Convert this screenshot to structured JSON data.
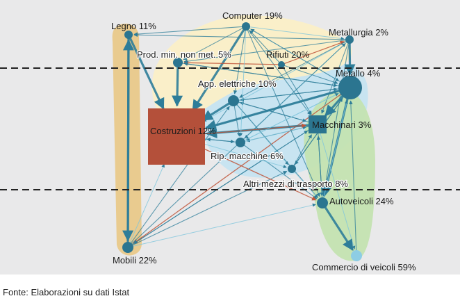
{
  "source": "Fonte: Elaborazioni su dati Istat",
  "colors": {
    "panel": "#e9e9ea",
    "edge": "#2e7d99",
    "edge_light": "#7fc6dc",
    "edge_red": "#c0553a",
    "node": "#2b7590",
    "node_costruzioni": "#b4503a",
    "node_commercio": "#8dcde4",
    "group_orange": "#e9c98a",
    "group_yellow": "#fbefc7",
    "group_blue": "#c6e4f1",
    "group_green": "#c4e3b1",
    "divider": "#222222"
  },
  "nodes": [
    {
      "id": "legno",
      "label": "Legno 11%"
    },
    {
      "id": "computer",
      "label": "Computer 19%"
    },
    {
      "id": "metallurgia",
      "label": "Metallurgia 2%"
    },
    {
      "id": "prodmin",
      "label": "Prod. min. non met. 5%"
    },
    {
      "id": "rifiuti",
      "label": "Rifiuti 20%"
    },
    {
      "id": "metallo",
      "label": "Metallo 4%"
    },
    {
      "id": "appelettriche",
      "label": "App. elettriche 10%"
    },
    {
      "id": "costruzioni",
      "label": "Costruzioni 12%"
    },
    {
      "id": "macchinari",
      "label": "Macchinari 3%"
    },
    {
      "id": "ripmacchine",
      "label": "Rip. macchine 6%"
    },
    {
      "id": "altrimezzi",
      "label": "Altri mezzi di trasporto 8%"
    },
    {
      "id": "autoveicoli",
      "label": "Autoveicoli 24%"
    },
    {
      "id": "mobili",
      "label": "Mobili 22%"
    },
    {
      "id": "commercio",
      "label": "Commercio di veicoli 59%"
    }
  ],
  "edges": [
    [
      "mobili",
      "legno"
    ],
    [
      "legno",
      "costruzioni"
    ],
    [
      "prodmin",
      "costruzioni"
    ],
    [
      "computer",
      "costruzioni"
    ],
    [
      "computer",
      "legno"
    ],
    [
      "computer",
      "prodmin"
    ],
    [
      "computer",
      "metallurgia"
    ],
    [
      "computer",
      "appelettriche"
    ],
    [
      "computer",
      "macchinari"
    ],
    [
      "computer",
      "metallo"
    ],
    [
      "rifiuti",
      "computer"
    ],
    [
      "rifiuti",
      "prodmin"
    ],
    [
      "rifiuti",
      "metallurgia"
    ],
    [
      "metallurgia",
      "legno"
    ],
    [
      "metallurgia",
      "prodmin"
    ],
    [
      "metallurgia",
      "costruzioni"
    ],
    [
      "metallurgia",
      "appelettriche"
    ],
    [
      "metallurgia",
      "macchinari"
    ],
    [
      "metallurgia",
      "ripmacchine"
    ],
    [
      "metallurgia",
      "autoveicoli"
    ],
    [
      "metallurgia",
      "metallo"
    ],
    [
      "metallo",
      "costruzioni"
    ],
    [
      "metallo",
      "appelettriche"
    ],
    [
      "metallo",
      "macchinari"
    ],
    [
      "metallo",
      "ripmacchine"
    ],
    [
      "metallo",
      "altrimezzi"
    ],
    [
      "metallo",
      "autoveicoli"
    ],
    [
      "metallo",
      "mobili"
    ],
    [
      "metallo",
      "prodmin"
    ],
    [
      "metallo",
      "computer"
    ],
    [
      "appelettriche",
      "costruzioni"
    ],
    [
      "appelettriche",
      "macchinari"
    ],
    [
      "appelettriche",
      "ripmacchine"
    ],
    [
      "appelettriche",
      "altrimezzi"
    ],
    [
      "appelettriche",
      "autoveicoli"
    ],
    [
      "appelettriche",
      "metallo"
    ],
    [
      "macchinari",
      "costruzioni"
    ],
    [
      "macchinari",
      "ripmacchine"
    ],
    [
      "macchinari",
      "autoveicoli"
    ],
    [
      "macchinari",
      "commercio"
    ],
    [
      "macchinari",
      "mobili"
    ],
    [
      "macchinari",
      "appelettriche"
    ],
    [
      "ripmacchine",
      "macchinari"
    ],
    [
      "ripmacchine",
      "autoveicoli"
    ],
    [
      "ripmacchine",
      "costruzioni"
    ],
    [
      "altrimezzi",
      "autoveicoli"
    ],
    [
      "altrimezzi",
      "macchinari"
    ],
    [
      "autoveicoli",
      "commercio"
    ],
    [
      "autoveicoli",
      "metallo"
    ],
    [
      "autoveicoli",
      "macchinari"
    ],
    [
      "commercio",
      "metallo"
    ],
    [
      "mobili",
      "costruzioni"
    ],
    [
      "mobili",
      "appelettriche"
    ],
    [
      "mobili",
      "macchinari"
    ],
    [
      "mobili",
      "autoveicoli"
    ],
    [
      "mobili",
      "metallurgia"
    ],
    [
      "mobili",
      "altrimezzi"
    ],
    [
      "legno",
      "mobili"
    ],
    [
      "prodmin",
      "metallo"
    ],
    [
      "costruzioni",
      "macchinari"
    ],
    [
      "costruzioni",
      "autoveicoli"
    ],
    [
      "costruzioni",
      "metallo"
    ],
    [
      "costruzioni",
      "ripmacchine"
    ],
    [
      "costruzioni",
      "altrimezzi"
    ],
    [
      "rifiuti",
      "macchinari"
    ],
    [
      "rifiuti",
      "metallo"
    ],
    [
      "computer",
      "ripmacchine"
    ],
    [
      "computer",
      "autoveicoli"
    ],
    [
      "altrimezzi",
      "metallo"
    ],
    [
      "ripmacchine",
      "metallo"
    ]
  ]
}
